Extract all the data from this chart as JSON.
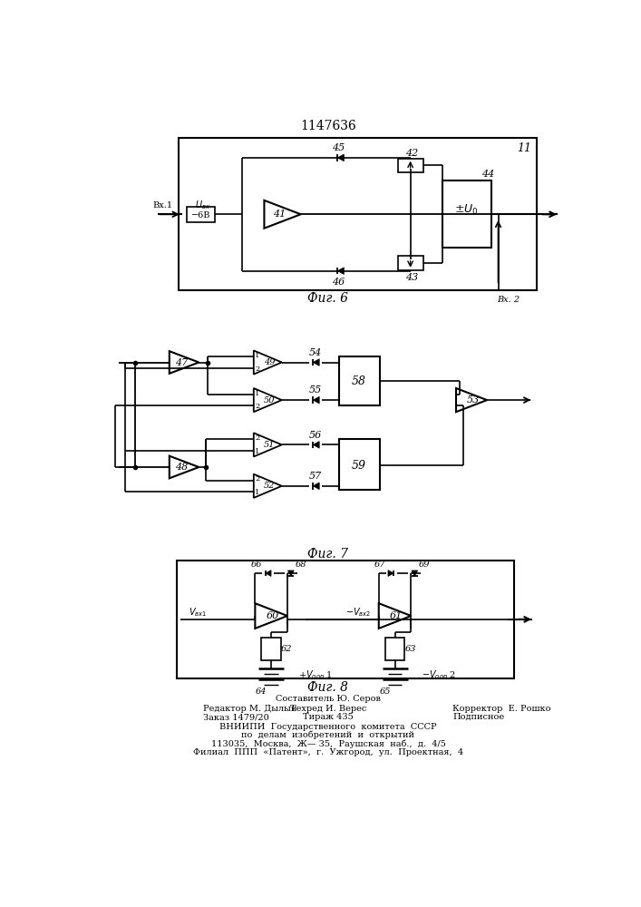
{
  "title": "1147636",
  "fig6_label": "Фиг. 6",
  "fig7_label": "Фиг. 7",
  "fig8_label": "Фиг. 8",
  "bg_color": "#ffffff",
  "footer_lines": [
    "Составитель Ю. Серов",
    "Редактор М. Дылын",
    "Техред И. Верес",
    "Корректор  Е. Рошко",
    "Заказ 1479/20",
    "Тираж 435",
    "Подписное",
    "ВНИИПИ  Государственного  комитета  СССР",
    "по  делам  изобретений  и  открытий",
    "113035,  Москва,  Ж— 35,  Раушская  наб.,  д.  4/5",
    "Филиал  ППП  «Патент»,  г.  Ужгород,  ул.  Проектная,  4"
  ]
}
